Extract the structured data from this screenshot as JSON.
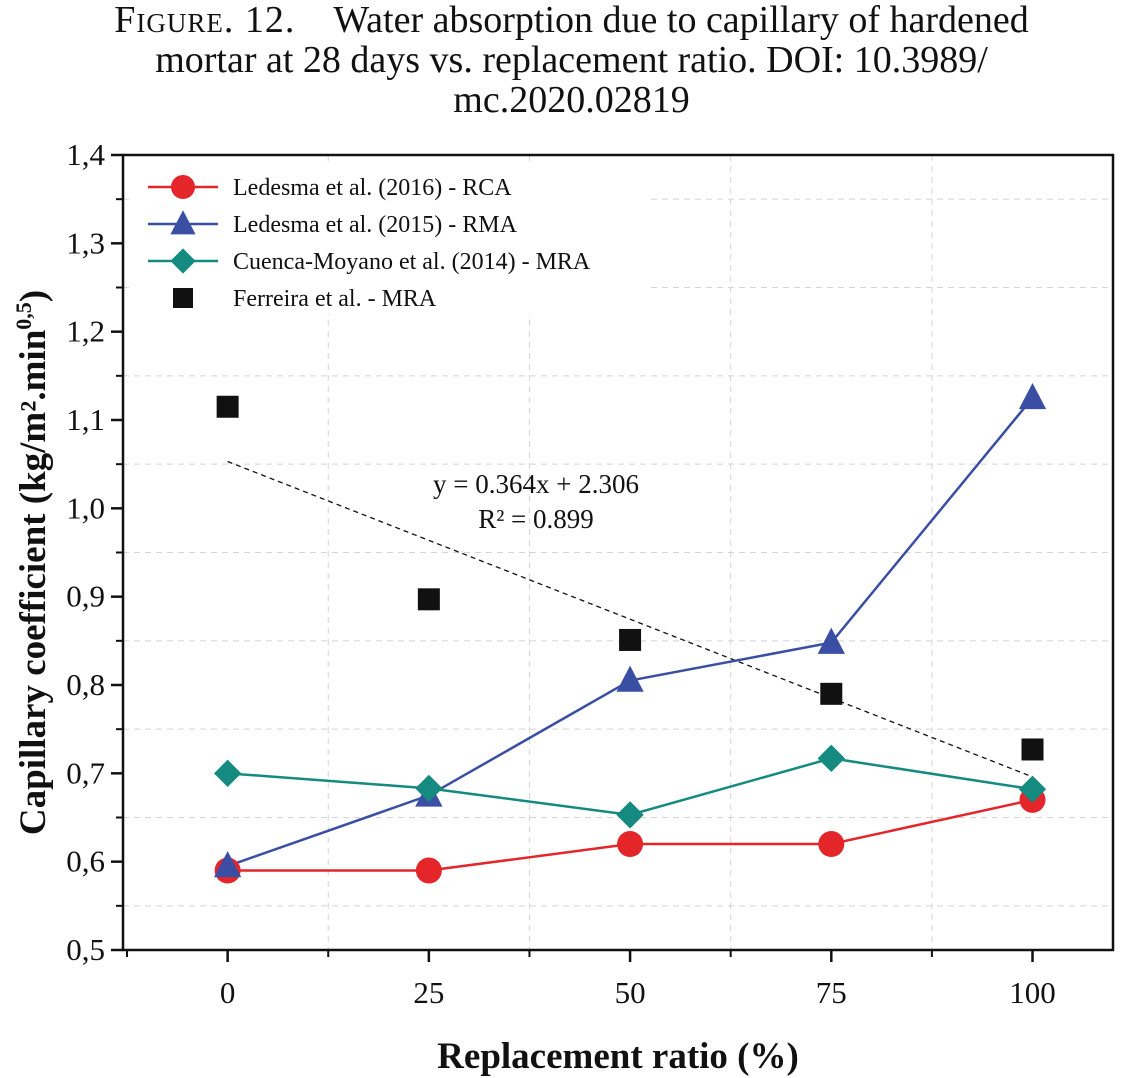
{
  "caption": {
    "label": "Figure. 12.",
    "line1": "Water absorption due to capillary of hardened",
    "line2": "mortar at 28 days vs. replacement ratio. DOI: 10.3989/",
    "line3": "mc.2020.02819"
  },
  "chart_data": {
    "type": "line",
    "xlabel": "Replacement ratio (%)",
    "ylabel": "Capillary coefficient (kg/m².min",
    "ylabel_sup": "0,5",
    "ylabel_close": ")",
    "x": [
      0,
      25,
      50,
      75,
      100
    ],
    "x_tick_labels": [
      "0",
      "25",
      "50",
      "75",
      "100"
    ],
    "xlim": [
      -13,
      110
    ],
    "ylim": [
      0.5,
      1.4
    ],
    "y_ticks": [
      0.5,
      0.6,
      0.7,
      0.8,
      0.9,
      1.0,
      1.1,
      1.2,
      1.3,
      1.4
    ],
    "y_tick_labels": [
      "0,5",
      "0,6",
      "0,7",
      "0,8",
      "0,9",
      "1,0",
      "1,1",
      "1,2",
      "1,3",
      "1,4"
    ],
    "grid": true,
    "legend_position": "top-left",
    "series": [
      {
        "name": "Ledesma et al. (2016) - RCA",
        "marker": "circle",
        "color": "#e4262b",
        "line": true,
        "values": [
          0.59,
          0.59,
          0.62,
          0.62,
          0.67
        ]
      },
      {
        "name": "Ledesma et al. (2015) - RMA",
        "marker": "triangle",
        "color": "#3a4fa3",
        "line": true,
        "values": [
          0.595,
          0.675,
          0.805,
          0.848,
          1.125
        ]
      },
      {
        "name": "Cuenca-Moyano et al. (2014) - MRA",
        "marker": "diamond",
        "color": "#148a80",
        "line": true,
        "values": [
          0.7,
          0.683,
          0.653,
          0.717,
          0.682
        ]
      },
      {
        "name": "Ferreira et al. - MRA",
        "marker": "square",
        "color": "#111111",
        "line": false,
        "values": [
          1.115,
          0.897,
          0.851,
          0.79,
          0.727
        ]
      }
    ],
    "trendline": {
      "style": "dashed",
      "x": [
        0,
        100
      ],
      "y": [
        1.053,
        0.696
      ],
      "equation": "y = 0.364x + 2.306",
      "r2": "R² = 0.899"
    }
  }
}
